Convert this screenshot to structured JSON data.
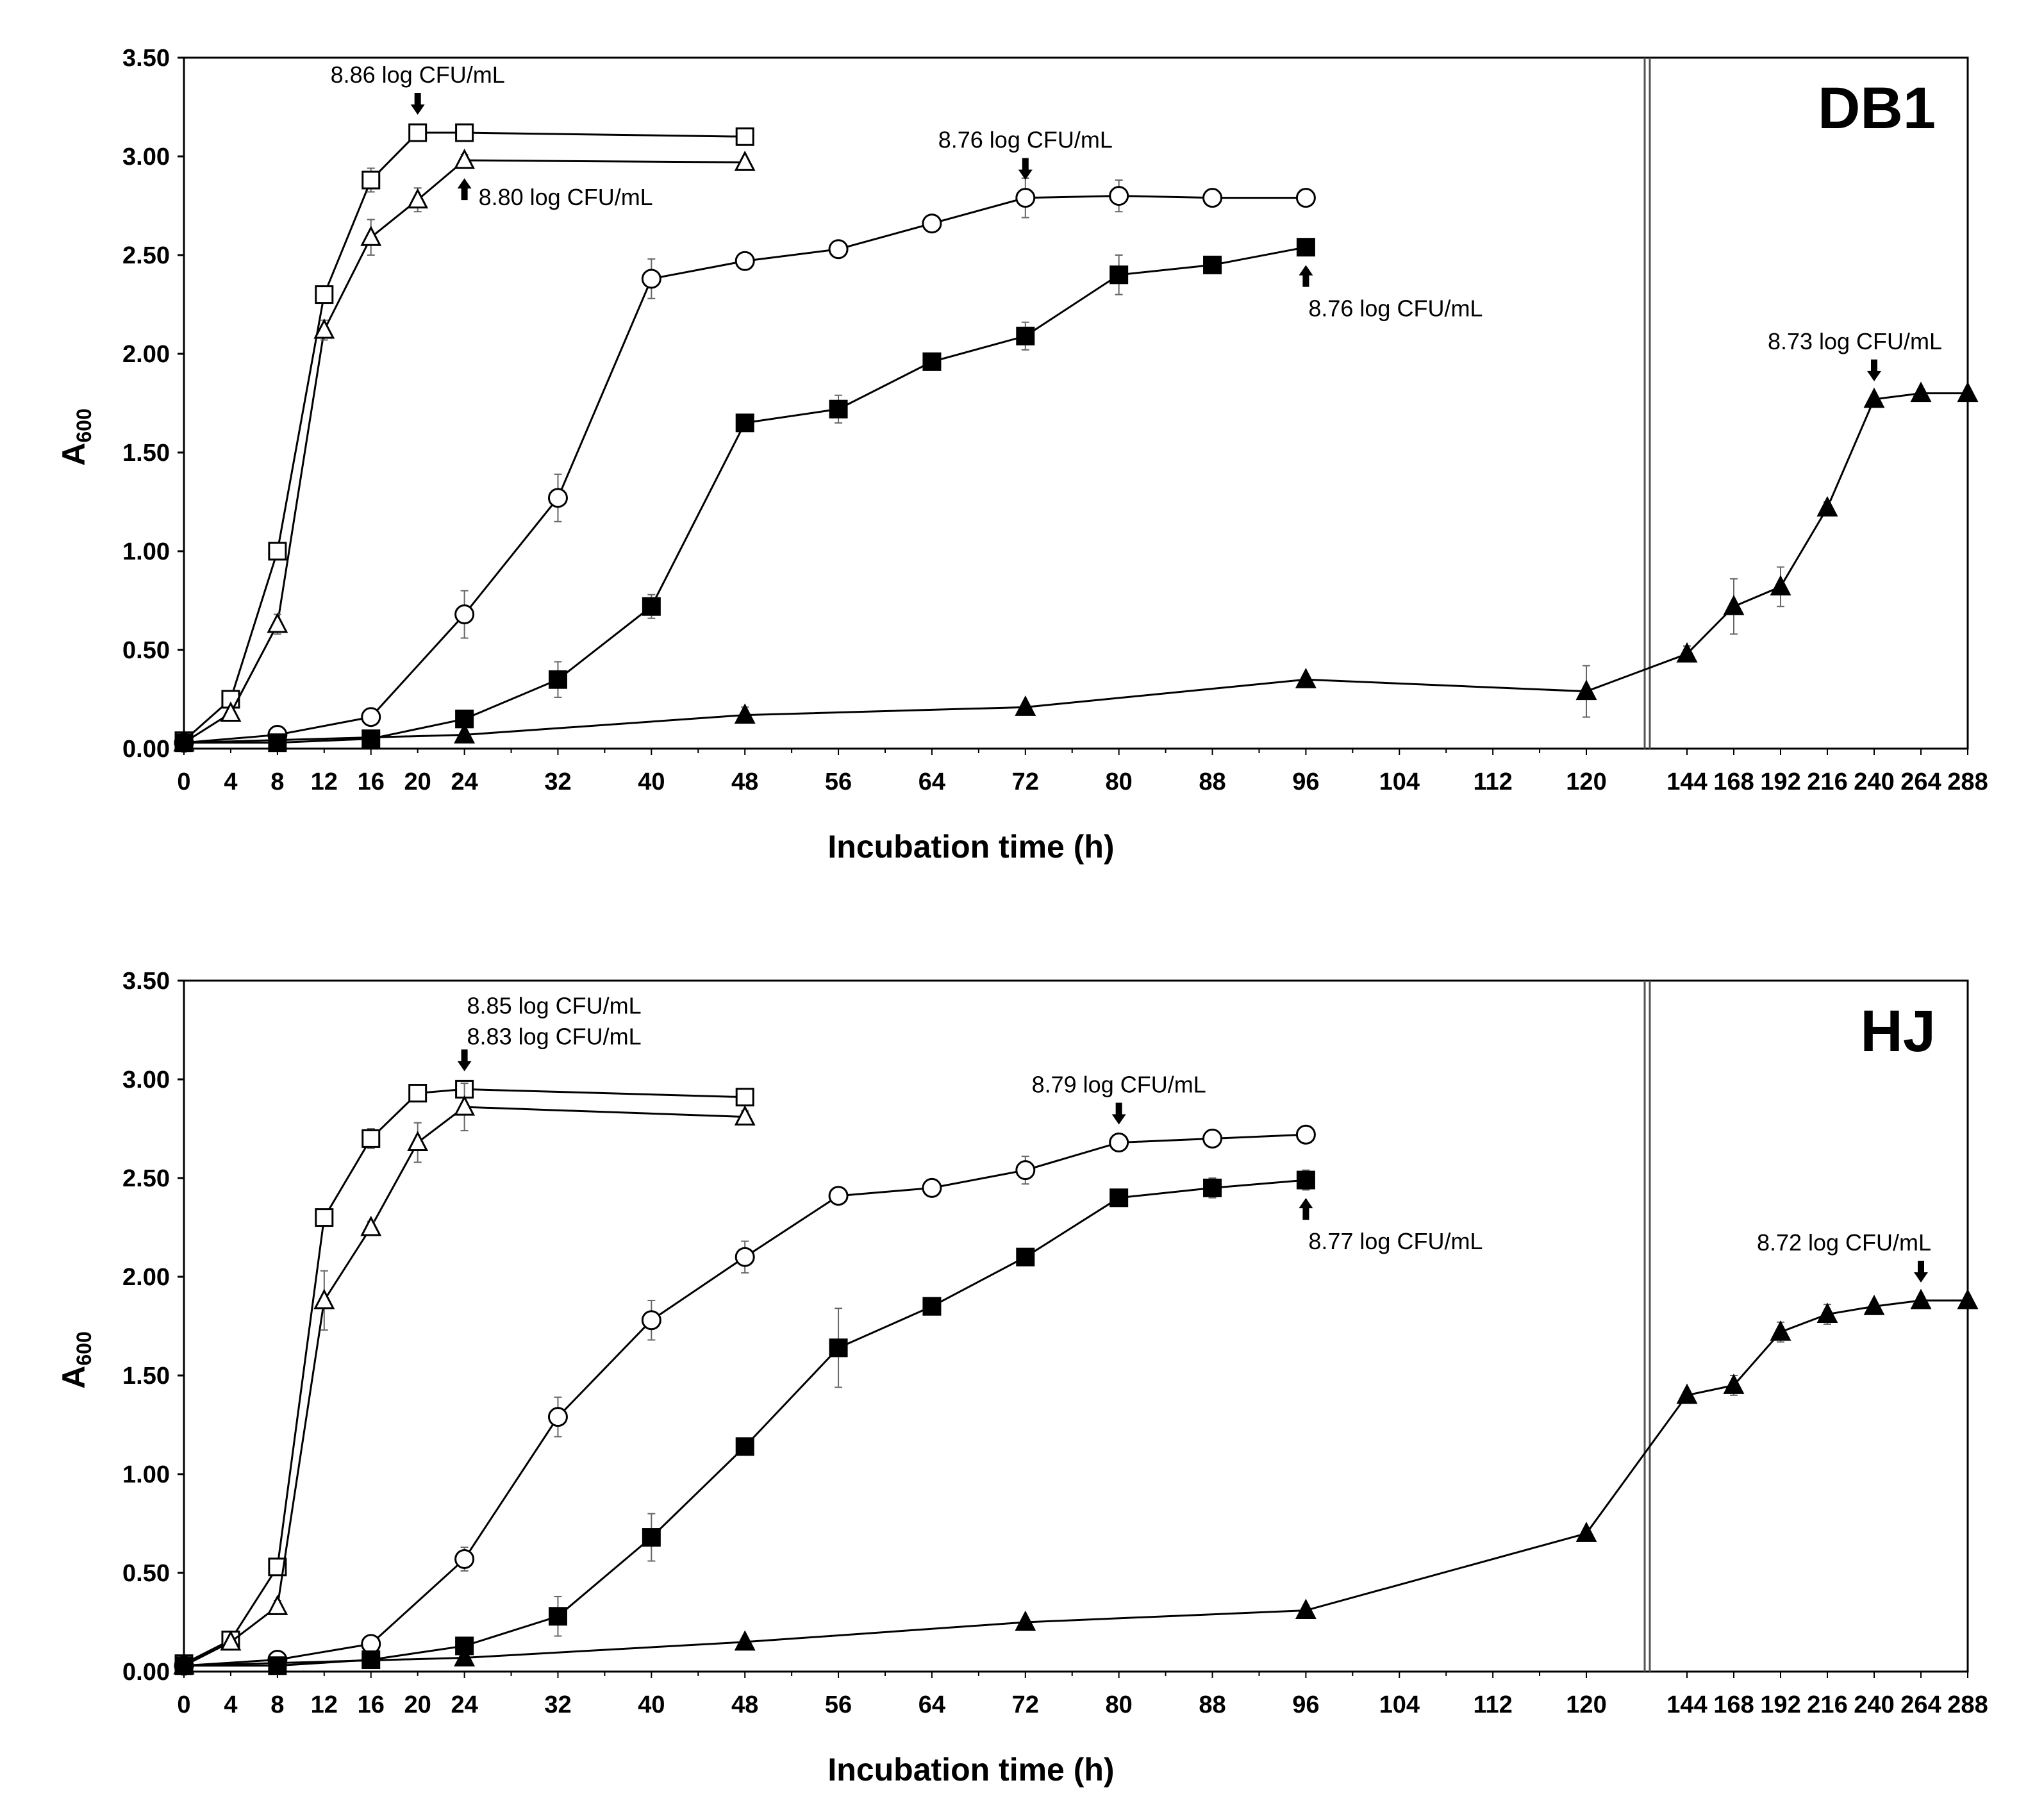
{
  "figure": {
    "x_axis_label": "Incubation time (h)"
  },
  "chart_data": [
    {
      "type": "line",
      "panel_label": "DB1",
      "ylabel": "A",
      "ylabel_sub": "600",
      "xlabel": "Incubation time (h)",
      "ylim": [
        0,
        3.5
      ],
      "y_ticks": [
        "0.00",
        "0.50",
        "1.00",
        "1.50",
        "2.00",
        "2.50",
        "3.00",
        "3.50"
      ],
      "x_ticks": [
        "0",
        "4",
        "8",
        "12",
        "16",
        "20",
        "24",
        "32",
        "40",
        "48",
        "56",
        "64",
        "72",
        "80",
        "88",
        "96",
        "104",
        "112",
        "120",
        "144",
        "168",
        "192",
        "216",
        "240",
        "264",
        "288"
      ],
      "axis_break_after": 120,
      "series": [
        {
          "name": "open square",
          "marker": "square-open",
          "x": [
            0,
            4,
            8,
            12,
            16,
            20,
            24,
            48
          ],
          "y": [
            0.04,
            0.25,
            1.0,
            2.3,
            2.88,
            3.12,
            3.12,
            3.1
          ],
          "err": [
            0,
            0.03,
            0.02,
            0.03,
            0.06,
            0.03,
            0.02,
            0.02
          ]
        },
        {
          "name": "open triangle",
          "marker": "triangle-open",
          "x": [
            0,
            4,
            8,
            12,
            16,
            20,
            24,
            48
          ],
          "y": [
            0.03,
            0.18,
            0.63,
            2.12,
            2.59,
            2.78,
            2.98,
            2.97
          ],
          "err": [
            0,
            0.02,
            0.05,
            0.05,
            0.09,
            0.06,
            0.03,
            0.02
          ]
        },
        {
          "name": "open circle",
          "marker": "circle-open",
          "x": [
            0,
            8,
            16,
            24,
            32,
            40,
            48,
            56,
            64,
            72,
            80,
            88,
            96
          ],
          "y": [
            0.03,
            0.07,
            0.16,
            0.68,
            1.27,
            2.38,
            2.47,
            2.53,
            2.66,
            2.79,
            2.8,
            2.79,
            2.79
          ],
          "err": [
            0,
            0.01,
            0.02,
            0.12,
            0.12,
            0.1,
            0.02,
            0.02,
            0.02,
            0.1,
            0.08,
            0.02,
            0.02
          ]
        },
        {
          "name": "filled square",
          "marker": "square-filled",
          "x": [
            0,
            8,
            16,
            24,
            32,
            40,
            48,
            56,
            64,
            72,
            80,
            88,
            96
          ],
          "y": [
            0.03,
            0.03,
            0.05,
            0.15,
            0.35,
            0.72,
            1.65,
            1.72,
            1.96,
            2.09,
            2.4,
            2.45,
            2.54
          ],
          "err": [
            0,
            0.01,
            0.01,
            0.03,
            0.09,
            0.06,
            0.02,
            0.07,
            0.02,
            0.07,
            0.1,
            0.03,
            0.02
          ]
        },
        {
          "name": "filled triangle",
          "marker": "triangle-filled",
          "x": [
            0,
            24,
            48,
            72,
            96,
            120,
            144,
            168,
            192,
            216,
            240,
            264,
            288
          ],
          "y": [
            0.03,
            0.07,
            0.17,
            0.21,
            0.35,
            0.29,
            0.48,
            0.72,
            0.82,
            1.22,
            1.77,
            1.8,
            1.8
          ],
          "err": [
            0,
            0.01,
            0.04,
            0.02,
            0.02,
            0.13,
            0.04,
            0.14,
            0.1,
            0.03,
            0.02,
            0.02,
            0.02
          ]
        }
      ],
      "annotations": [
        {
          "text": "8.86 log CFU/mL",
          "x": 20,
          "y": 3.12,
          "arrow": "down",
          "text_side": "above"
        },
        {
          "text": "8.80 log CFU/mL",
          "x": 24,
          "y": 2.98,
          "arrow": "up",
          "text_side": "right"
        },
        {
          "text": "8.76 log CFU/mL",
          "x": 72,
          "y": 2.79,
          "arrow": "down",
          "text_side": "above"
        },
        {
          "text": "8.76 log CFU/mL",
          "x": 96,
          "y": 2.54,
          "arrow": "up",
          "text_side": "below"
        },
        {
          "text": "8.73 log CFU/mL",
          "x": 240,
          "y": 1.77,
          "arrow": "down",
          "text_side": "above"
        }
      ]
    },
    {
      "type": "line",
      "panel_label": "HJ",
      "ylabel": "A",
      "ylabel_sub": "600",
      "xlabel": "Incubation time (h)",
      "ylim": [
        0,
        3.5
      ],
      "y_ticks": [
        "0.00",
        "0.50",
        "1.00",
        "1.50",
        "2.00",
        "2.50",
        "3.00",
        "3.50"
      ],
      "x_ticks": [
        "0",
        "4",
        "8",
        "12",
        "16",
        "20",
        "24",
        "32",
        "40",
        "48",
        "56",
        "64",
        "72",
        "80",
        "88",
        "96",
        "104",
        "112",
        "120",
        "144",
        "168",
        "192",
        "216",
        "240",
        "264",
        "288"
      ],
      "axis_break_after": 120,
      "series": [
        {
          "name": "open square",
          "marker": "square-open",
          "x": [
            0,
            4,
            8,
            12,
            16,
            20,
            24,
            48
          ],
          "y": [
            0.04,
            0.16,
            0.53,
            2.3,
            2.7,
            2.93,
            2.95,
            2.91
          ],
          "err": [
            0,
            0.02,
            0.03,
            0.02,
            0.05,
            0.03,
            0.03,
            0.02
          ]
        },
        {
          "name": "open triangle",
          "marker": "triangle-open",
          "x": [
            0,
            4,
            8,
            12,
            16,
            20,
            24,
            48
          ],
          "y": [
            0.03,
            0.15,
            0.33,
            1.88,
            2.25,
            2.68,
            2.86,
            2.81
          ],
          "err": [
            0,
            0.02,
            0.03,
            0.15,
            0.03,
            0.1,
            0.12,
            0.03
          ]
        },
        {
          "name": "open circle",
          "marker": "circle-open",
          "x": [
            0,
            8,
            16,
            24,
            32,
            40,
            48,
            56,
            64,
            72,
            80,
            88,
            96
          ],
          "y": [
            0.03,
            0.06,
            0.14,
            0.57,
            1.29,
            1.78,
            2.1,
            2.41,
            2.45,
            2.54,
            2.68,
            2.7,
            2.72
          ],
          "err": [
            0,
            0.01,
            0.02,
            0.06,
            0.1,
            0.1,
            0.08,
            0.02,
            0.02,
            0.07,
            0.02,
            0.02,
            0.02
          ]
        },
        {
          "name": "filled square",
          "marker": "square-filled",
          "x": [
            0,
            8,
            16,
            24,
            32,
            40,
            48,
            56,
            64,
            72,
            80,
            88,
            96
          ],
          "y": [
            0.03,
            0.03,
            0.06,
            0.13,
            0.28,
            0.68,
            1.14,
            1.64,
            1.85,
            2.1,
            2.4,
            2.45,
            2.49
          ],
          "err": [
            0,
            0.01,
            0.01,
            0.02,
            0.1,
            0.12,
            0.02,
            0.2,
            0.02,
            0.02,
            0.02,
            0.05,
            0.05
          ]
        },
        {
          "name": "filled triangle",
          "marker": "triangle-filled",
          "x": [
            0,
            24,
            48,
            72,
            96,
            120,
            144,
            168,
            192,
            216,
            240,
            264,
            288
          ],
          "y": [
            0.03,
            0.07,
            0.15,
            0.25,
            0.31,
            0.7,
            1.4,
            1.45,
            1.72,
            1.81,
            1.85,
            1.88,
            1.88
          ],
          "err": [
            0,
            0.01,
            0.02,
            0.02,
            0.02,
            0.02,
            0.02,
            0.05,
            0.05,
            0.05,
            0.02,
            0.02,
            0.02
          ]
        }
      ],
      "annotations": [
        {
          "text": "8.85 log CFU/mL",
          "x": 24,
          "y": 2.95,
          "arrow": "down",
          "text_side": "above2"
        },
        {
          "text": "8.83 log CFU/mL",
          "x": 24,
          "y": 2.95,
          "arrow": "none",
          "text_side": "above"
        },
        {
          "text": "8.79 log CFU/mL",
          "x": 80,
          "y": 2.68,
          "arrow": "down",
          "text_side": "above"
        },
        {
          "text": "8.77 log CFU/mL",
          "x": 96,
          "y": 2.49,
          "arrow": "up",
          "text_side": "below"
        },
        {
          "text": "8.72 log CFU/mL",
          "x": 264,
          "y": 1.88,
          "arrow": "down",
          "text_side": "above"
        }
      ]
    }
  ]
}
